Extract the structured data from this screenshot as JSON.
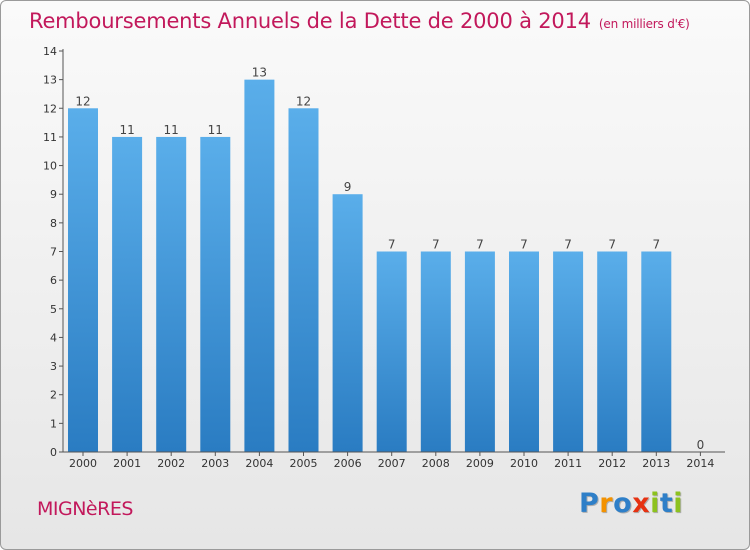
{
  "chart_data": {
    "type": "bar",
    "title": "Remboursements Annuels de la Dette de 2000 à 2014",
    "subtitle": "(en milliers d'€)",
    "categories": [
      "2000",
      "2001",
      "2002",
      "2003",
      "2004",
      "2005",
      "2006",
      "2007",
      "2008",
      "2009",
      "2010",
      "2011",
      "2012",
      "2013",
      "2014"
    ],
    "values": [
      12,
      11,
      11,
      11,
      13,
      12,
      9,
      7,
      7,
      7,
      7,
      7,
      7,
      7,
      0
    ],
    "ylim": [
      0,
      14
    ],
    "yticks": [
      0,
      1,
      2,
      3,
      4,
      5,
      6,
      7,
      8,
      9,
      10,
      11,
      12,
      13,
      14
    ],
    "grid": false,
    "bar_color": "#3b8fd6"
  },
  "footer": {
    "commune": "MIGNèRES",
    "brand_letters": [
      {
        "char": "P",
        "color": "#2e7fc8"
      },
      {
        "char": "r",
        "color": "#f39200"
      },
      {
        "char": "o",
        "color": "#2e7fc8"
      },
      {
        "char": "x",
        "color": "#e63212"
      },
      {
        "char": "i",
        "color": "#8dc21f"
      },
      {
        "char": "t",
        "color": "#2e7fc8"
      },
      {
        "char": "i",
        "color": "#8dc21f"
      }
    ]
  }
}
